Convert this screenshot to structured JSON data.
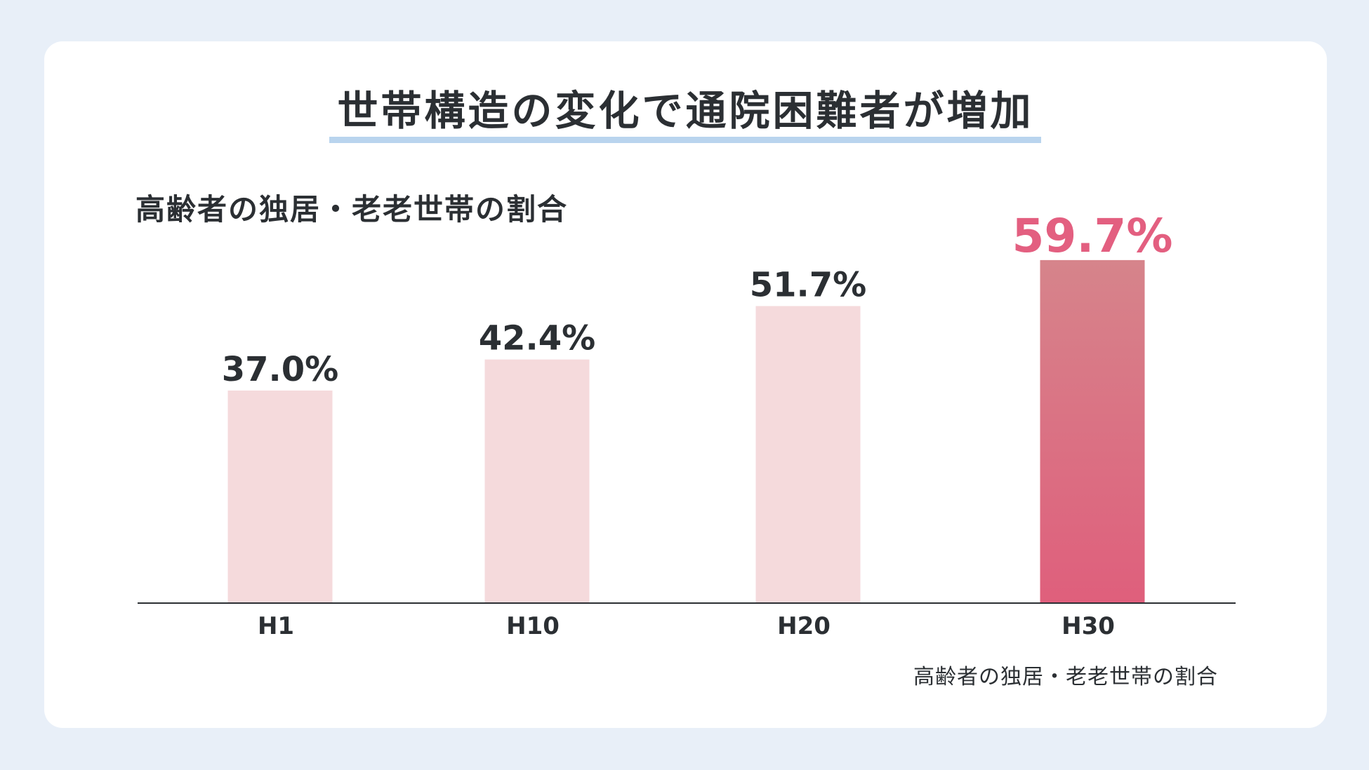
{
  "title": "世帯構造の変化で通院困難者が増加",
  "subtitle": "高齢者の独居・老老世帯の割合",
  "source_note": "高齢者の独居・老老世帯の割合",
  "colors": {
    "bar_normal": "#f5dadc",
    "bar_highlight_top": "#d6848b",
    "bar_highlight_bottom": "#df5f7c",
    "highlight_text": "#e35f80",
    "label_text": "#2b2f33",
    "title_underline": "#b9d4ee"
  },
  "chart_data": {
    "type": "bar",
    "title": "世帯構造の変化で通院困難者が増加",
    "subtitle": "高齢者の独居・老老世帯の割合",
    "categories": [
      "H1",
      "H10",
      "H20",
      "H30"
    ],
    "values": [
      37.0,
      42.4,
      51.7,
      59.7
    ],
    "value_labels": [
      "37.0%",
      "42.4%",
      "51.7%",
      "59.7%"
    ],
    "highlight_index": 3,
    "unit": "%",
    "ylim": [
      0,
      100
    ],
    "grid": false,
    "legend": "none"
  }
}
